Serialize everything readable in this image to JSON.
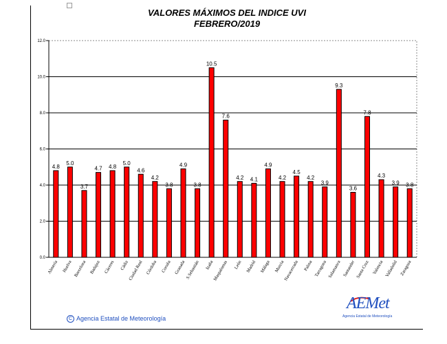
{
  "title_line1": "VALORES MÁXIMOS DEL INDICE UVI",
  "title_line2": "FEBRERO/2019",
  "credit": "Agencia Estatal de Meteorología",
  "credit_symbol": "C",
  "logo": {
    "word": "AEMet",
    "sub": "Agencia Estatal de Meteorología",
    "colors": {
      "blue": "#1f4fbf",
      "red": "#e02020"
    }
  },
  "chart_data": {
    "type": "bar",
    "title": "VALORES MÁXIMOS DEL INDICE UVI",
    "subtitle": "FEBRERO/2019",
    "xlabel": "",
    "ylabel": "",
    "ylim": [
      0,
      12
    ],
    "yticks": [
      "0.0",
      "2.0",
      "4.0",
      "6.0",
      "8.0",
      "10.0",
      "12.0"
    ],
    "grid": true,
    "bar_color": "#ff0000",
    "categories": [
      "Almería",
      "Huelva",
      "Barcelona",
      "Badajoz",
      "Cáceres",
      "Cádiz",
      "Ciudad Real",
      "Córdoba",
      "Coruña",
      "Granada",
      "S.Sebastián",
      "Izaña",
      "Maspalomas",
      "León",
      "Madrid",
      "Málaga",
      "Murcia",
      "Navacerrada",
      "Palma",
      "Tarragona",
      "Salamanca",
      "Santander",
      "Santa Cruz",
      "Valencia",
      "Valladolid",
      "Zaragoza"
    ],
    "values": [
      4.8,
      5.0,
      3.7,
      4.7,
      4.8,
      5.0,
      4.6,
      4.2,
      3.8,
      4.9,
      3.8,
      10.5,
      7.6,
      4.2,
      4.1,
      4.9,
      4.2,
      4.5,
      4.2,
      3.9,
      9.3,
      3.6,
      7.8,
      4.3,
      3.9,
      3.8
    ],
    "labels": [
      "4.8",
      "5.0",
      "3.7",
      "4.7",
      "4.8",
      "5.0",
      "4.6",
      "4.2",
      "3.8",
      "4.9",
      "3.8",
      "10.5",
      "7.6",
      "4.2",
      "4.1",
      "4.9",
      "4.2",
      "4.5",
      "4.2",
      "3.9",
      "9.3",
      "3.6",
      "7.8",
      "4.3",
      "3.9",
      "3.8"
    ]
  }
}
